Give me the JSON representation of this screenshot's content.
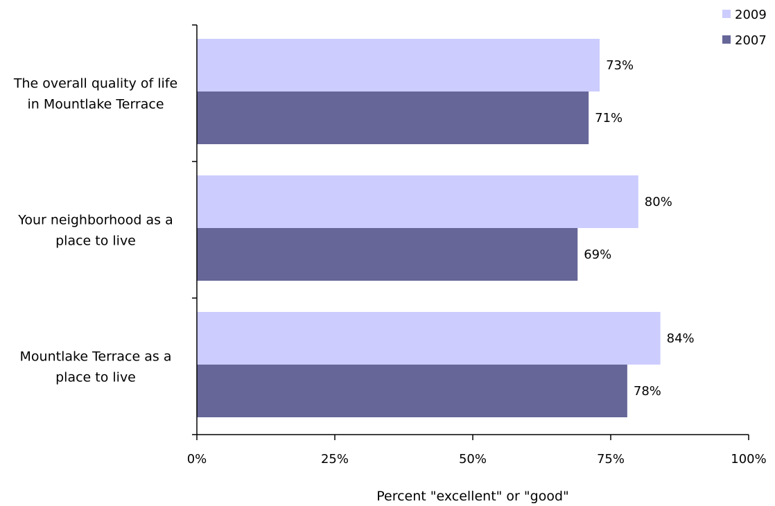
{
  "chart_data": {
    "type": "bar",
    "orientation": "horizontal",
    "categories": [
      [
        "The overall quality of life",
        "in Mountlake Terrace"
      ],
      [
        "Your neighborhood as a",
        "place to live"
      ],
      [
        "Mountlake Terrace as a",
        "place to live"
      ]
    ],
    "series": [
      {
        "name": "2009",
        "values": [
          73,
          80,
          84
        ],
        "labels": [
          "73%",
          "80%",
          "84%"
        ],
        "color": "#ccccff"
      },
      {
        "name": "2007",
        "values": [
          71,
          69,
          78
        ],
        "labels": [
          "71%",
          "69%",
          "78%"
        ],
        "color": "#666699"
      }
    ],
    "xlabel": "Percent \"excellent\" or \"good\"",
    "xlim": [
      0,
      100
    ],
    "xticks": [
      0,
      25,
      50,
      75,
      100
    ],
    "xtick_labels": [
      "0%",
      "25%",
      "50%",
      "75%",
      "100%"
    ],
    "legend_position": "top-right",
    "grid": false
  }
}
